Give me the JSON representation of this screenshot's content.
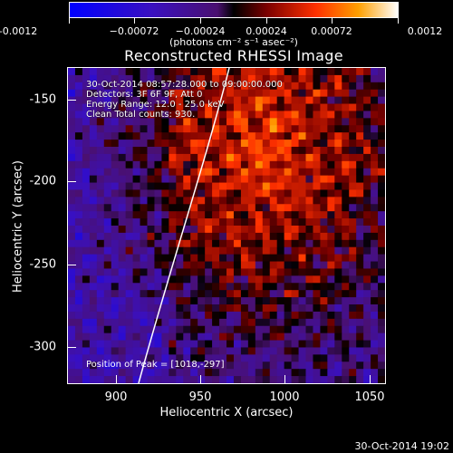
{
  "colorbar": {
    "tick_labels": [
      "-0.0012",
      "−0.00072",
      "−0.00024",
      "0.00024",
      "0.00072",
      "0.0012"
    ],
    "units": "(photons cm⁻² s⁻¹ asec⁻²)"
  },
  "title": "Reconstructed RHESSI Image",
  "annotations": {
    "time_range": "30-Oct-2014 08:57:28.000 to 09:00:00.000",
    "detectors": "Detectors: 3F 6F 9F, Att 0",
    "energy": "Energy Range: 12.0 - 25.0 keV",
    "clean": "Clean   Total counts: 930.",
    "peak": "Position of Peak = [1018,-297]"
  },
  "axes": {
    "xlabel": "Heliocentric X (arcsec)",
    "ylabel": "Heliocentric Y (arcsec)",
    "x_ticks": [
      "900",
      "950",
      "1000",
      "1050"
    ],
    "y_ticks": [
      "-150",
      "-200",
      "-250",
      "-300"
    ]
  },
  "timestamp": "30-Oct-2014 19:02",
  "colors": {
    "limb_line": "#ffffff",
    "background": "#000000"
  }
}
